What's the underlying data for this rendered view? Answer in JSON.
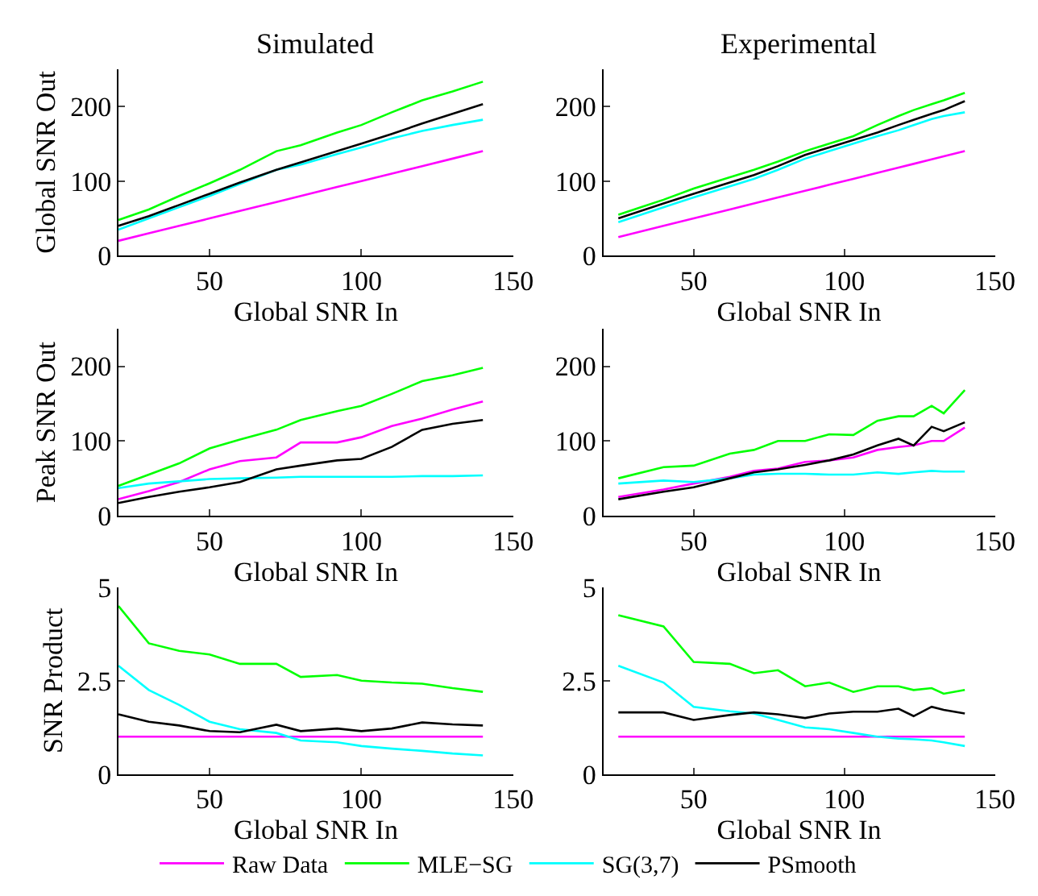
{
  "chart_data": [
    {
      "type": "line",
      "title": "Simulated",
      "xlabel": "Global SNR In",
      "ylabel": "Global SNR Out",
      "xlim": [
        20,
        150
      ],
      "xticks": [
        50,
        100,
        150
      ],
      "ylim": [
        0,
        250
      ],
      "yticks": [
        0,
        100,
        200
      ],
      "grid": false,
      "legend": "bottom",
      "line_style": "solid",
      "marker": "none",
      "x": [
        20,
        30,
        40,
        50,
        60,
        72,
        80,
        92,
        100,
        110,
        120,
        130,
        140
      ],
      "series": [
        {
          "name": "Raw Data",
          "color": "#ff00ff",
          "values": [
            20,
            30,
            40,
            50,
            60,
            72,
            80,
            92,
            100,
            110,
            120,
            130,
            140
          ]
        },
        {
          "name": "MLE−SG",
          "color": "#00ff00",
          "values": [
            48,
            62,
            80,
            97,
            115,
            140,
            148,
            165,
            175,
            192,
            208,
            220,
            233
          ]
        },
        {
          "name": "SG(3,7)",
          "color": "#00ffff",
          "values": [
            35,
            50,
            65,
            80,
            96,
            115,
            122,
            136,
            145,
            157,
            167,
            175,
            182
          ]
        },
        {
          "name": "PSmooth",
          "color": "#000000",
          "values": [
            40,
            53,
            68,
            83,
            98,
            115,
            125,
            140,
            150,
            163,
            177,
            190,
            203
          ]
        }
      ]
    },
    {
      "type": "line",
      "title": "Experimental",
      "xlabel": "Global SNR In",
      "xlim": [
        20,
        150
      ],
      "xticks": [
        50,
        100,
        150
      ],
      "ylim": [
        0,
        250
      ],
      "yticks": [
        0,
        100,
        200
      ],
      "grid": false,
      "line_style": "solid",
      "marker": "none",
      "x": [
        25,
        40,
        50,
        62,
        70,
        78,
        87,
        95,
        103,
        111,
        118,
        123,
        129,
        133,
        140
      ],
      "series": [
        {
          "color": "#ff00ff",
          "values": [
            25,
            40,
            50,
            62,
            70,
            78,
            87,
            95,
            103,
            111,
            118,
            123,
            129,
            133,
            140
          ]
        },
        {
          "color": "#00ff00",
          "values": [
            55,
            75,
            90,
            105,
            115,
            126,
            140,
            150,
            160,
            175,
            187,
            195,
            203,
            208,
            218
          ]
        },
        {
          "color": "#00ffff",
          "values": [
            45,
            65,
            78,
            93,
            103,
            115,
            130,
            140,
            150,
            160,
            168,
            175,
            183,
            187,
            192
          ]
        },
        {
          "color": "#000000",
          "values": [
            50,
            70,
            83,
            98,
            108,
            120,
            135,
            145,
            155,
            165,
            175,
            182,
            190,
            195,
            207
          ]
        }
      ]
    },
    {
      "type": "line",
      "xlabel": "Global SNR In",
      "ylabel": "Peak SNR Out",
      "xlim": [
        20,
        150
      ],
      "xticks": [
        50,
        100,
        150
      ],
      "ylim": [
        0,
        250
      ],
      "yticks": [
        0,
        100,
        200
      ],
      "grid": false,
      "line_style": "solid",
      "marker": "none",
      "x": [
        20,
        30,
        40,
        50,
        60,
        72,
        80,
        92,
        100,
        110,
        120,
        130,
        140
      ],
      "series": [
        {
          "color": "#ff00ff",
          "values": [
            22,
            33,
            45,
            62,
            73,
            78,
            98,
            98,
            105,
            120,
            130,
            142,
            153
          ]
        },
        {
          "color": "#00ff00",
          "values": [
            40,
            55,
            70,
            90,
            102,
            115,
            128,
            140,
            147,
            163,
            180,
            188,
            198
          ]
        },
        {
          "color": "#00ffff",
          "values": [
            37,
            43,
            46,
            49,
            50,
            51,
            52,
            52,
            52,
            52,
            53,
            53,
            54
          ]
        },
        {
          "color": "#000000",
          "values": [
            17,
            25,
            32,
            38,
            45,
            62,
            67,
            74,
            76,
            92,
            115,
            123,
            128
          ]
        }
      ]
    },
    {
      "type": "line",
      "xlabel": "Global SNR In",
      "xlim": [
        20,
        150
      ],
      "xticks": [
        50,
        100,
        150
      ],
      "ylim": [
        0,
        250
      ],
      "yticks": [
        0,
        100,
        200
      ],
      "grid": false,
      "line_style": "solid",
      "marker": "none",
      "x": [
        25,
        40,
        50,
        62,
        70,
        78,
        87,
        95,
        103,
        111,
        118,
        123,
        129,
        133,
        140
      ],
      "series": [
        {
          "color": "#ff00ff",
          "values": [
            25,
            35,
            43,
            52,
            60,
            63,
            72,
            74,
            78,
            88,
            92,
            94,
            100,
            100,
            118
          ]
        },
        {
          "color": "#00ff00",
          "values": [
            50,
            65,
            67,
            83,
            88,
            100,
            100,
            109,
            108,
            127,
            133,
            133,
            147,
            137,
            168
          ]
        },
        {
          "color": "#00ffff",
          "values": [
            43,
            47,
            45,
            50,
            55,
            56,
            56,
            55,
            55,
            58,
            56,
            58,
            60,
            59,
            59
          ]
        },
        {
          "color": "#000000",
          "values": [
            22,
            32,
            38,
            50,
            58,
            62,
            68,
            74,
            82,
            94,
            103,
            94,
            119,
            113,
            125
          ]
        }
      ]
    },
    {
      "type": "line",
      "xlabel": "Global SNR In",
      "ylabel": "SNR Product",
      "xlim": [
        20,
        150
      ],
      "xticks": [
        50,
        100,
        150
      ],
      "ylim": [
        0,
        5
      ],
      "yticks": [
        0,
        2.5,
        5
      ],
      "grid": false,
      "line_style": "solid",
      "marker": "none",
      "x": [
        20,
        30,
        40,
        50,
        60,
        72,
        80,
        92,
        100,
        110,
        120,
        130,
        140
      ],
      "series": [
        {
          "color": "#ff00ff",
          "values": [
            1,
            1,
            1,
            1,
            1,
            1,
            1,
            1,
            1,
            1,
            1,
            1,
            1
          ]
        },
        {
          "color": "#00ff00",
          "values": [
            4.5,
            3.5,
            3.3,
            3.2,
            2.95,
            2.95,
            2.6,
            2.65,
            2.5,
            2.45,
            2.42,
            2.3,
            2.2
          ]
        },
        {
          "color": "#00ffff",
          "values": [
            2.9,
            2.25,
            1.85,
            1.4,
            1.2,
            1.1,
            0.9,
            0.85,
            0.75,
            0.68,
            0.62,
            0.55,
            0.5
          ]
        },
        {
          "color": "#000000",
          "values": [
            1.6,
            1.4,
            1.3,
            1.15,
            1.12,
            1.32,
            1.15,
            1.22,
            1.15,
            1.22,
            1.38,
            1.33,
            1.3
          ]
        }
      ]
    },
    {
      "type": "line",
      "xlabel": "Global SNR In",
      "xlim": [
        20,
        150
      ],
      "xticks": [
        50,
        100,
        150
      ],
      "ylim": [
        0,
        5
      ],
      "yticks": [
        0,
        2.5,
        5
      ],
      "grid": false,
      "line_style": "solid",
      "marker": "none",
      "x": [
        25,
        40,
        50,
        62,
        70,
        78,
        87,
        95,
        103,
        111,
        118,
        123,
        129,
        133,
        140
      ],
      "series": [
        {
          "color": "#ff00ff",
          "values": [
            1,
            1,
            1,
            1,
            1,
            1,
            1,
            1,
            1,
            1,
            1,
            1,
            1,
            1,
            1
          ]
        },
        {
          "color": "#00ff00",
          "values": [
            4.25,
            3.95,
            3.0,
            2.95,
            2.7,
            2.78,
            2.35,
            2.45,
            2.2,
            2.35,
            2.35,
            2.25,
            2.3,
            2.15,
            2.25
          ]
        },
        {
          "color": "#00ffff",
          "values": [
            2.9,
            2.45,
            1.8,
            1.68,
            1.62,
            1.45,
            1.25,
            1.2,
            1.1,
            1.0,
            0.95,
            0.93,
            0.9,
            0.85,
            0.75
          ]
        },
        {
          "color": "#000000",
          "values": [
            1.65,
            1.65,
            1.45,
            1.58,
            1.65,
            1.6,
            1.5,
            1.62,
            1.67,
            1.67,
            1.75,
            1.55,
            1.8,
            1.72,
            1.62
          ]
        }
      ]
    }
  ]
}
